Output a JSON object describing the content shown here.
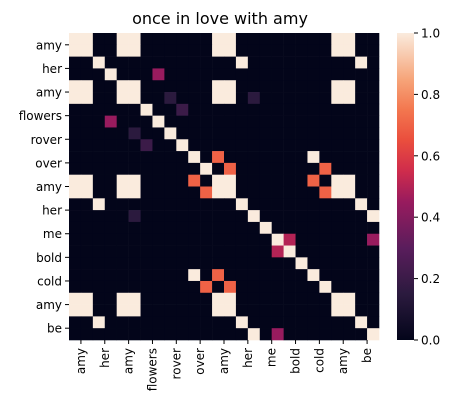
{
  "chart_data": {
    "type": "heatmap",
    "title": "once in love with amy",
    "xlabel": "",
    "ylabel": "",
    "x_categories": [
      "amy",
      "her",
      "amy",
      "flowers",
      "rover",
      "over",
      "amy",
      "her",
      "me",
      "bold",
      "cold",
      "amy",
      "be"
    ],
    "y_categories": [
      "amy",
      "her",
      "amy",
      "flowers",
      "rover",
      "over",
      "amy",
      "her",
      "me",
      "bold",
      "cold",
      "amy",
      "be"
    ],
    "units_per_word": 2,
    "values": [
      [
        1,
        1,
        0,
        0,
        1,
        1,
        0,
        0,
        0,
        0,
        0,
        0,
        1,
        1,
        0,
        0,
        0,
        0,
        0,
        0,
        0,
        0,
        1,
        1,
        0,
        0
      ],
      [
        1,
        1,
        0,
        0,
        1,
        1,
        0,
        0,
        0,
        0,
        0,
        0,
        1,
        1,
        0,
        0,
        0,
        0,
        0,
        0,
        0,
        0,
        1,
        1,
        0,
        0
      ],
      [
        0,
        0,
        1,
        0,
        0,
        0,
        0,
        0,
        0,
        0,
        0,
        0,
        0,
        0,
        1,
        0,
        0,
        0,
        0,
        0,
        0,
        0,
        0,
        0,
        1,
        0
      ],
      [
        0,
        0,
        0,
        1,
        0,
        0,
        0,
        0,
        0,
        0,
        0,
        0,
        0,
        0,
        0,
        0,
        0,
        0,
        0,
        0,
        0,
        0,
        0,
        0,
        0,
        0
      ],
      [
        1,
        1,
        0,
        0,
        1,
        1,
        0,
        0,
        0,
        0,
        0,
        0,
        1,
        1,
        0,
        0,
        0,
        0,
        0,
        0,
        0,
        0,
        1,
        1,
        0,
        0
      ],
      [
        1,
        1,
        0,
        0,
        1,
        1,
        0,
        0,
        0,
        0,
        0,
        0,
        1,
        1,
        0,
        0,
        0,
        0,
        0,
        0,
        0,
        0,
        1,
        1,
        0,
        0
      ],
      [
        0,
        0,
        0,
        0,
        0,
        0,
        1,
        0,
        0,
        0,
        0,
        0,
        0,
        0,
        0,
        0,
        0,
        0,
        0,
        0,
        0,
        0,
        0,
        0,
        0,
        0
      ],
      [
        0,
        0,
        0,
        0,
        0,
        0,
        0,
        1,
        0,
        0,
        0,
        0,
        0,
        0,
        0,
        0,
        0,
        0,
        0,
        0,
        0,
        0,
        0,
        0,
        0,
        0
      ],
      [
        0,
        0,
        0,
        0,
        0,
        0,
        0,
        0,
        1,
        0,
        0,
        0,
        0,
        0,
        0,
        0,
        0,
        0,
        0,
        0,
        0,
        0,
        0,
        0,
        0,
        0
      ],
      [
        0,
        0,
        0,
        0,
        0,
        0,
        0,
        0,
        0,
        1,
        0,
        0,
        0,
        0,
        0,
        0,
        0,
        0,
        0,
        0,
        0,
        0,
        0,
        0,
        0,
        0
      ],
      [
        0,
        0,
        0,
        0,
        0,
        0,
        0,
        0,
        0,
        0,
        1,
        0,
        0,
        0,
        0,
        0,
        0,
        0,
        0,
        0,
        1,
        0,
        0,
        0,
        0,
        0
      ],
      [
        0,
        0,
        0,
        0,
        0,
        0,
        0,
        0,
        0,
        0,
        0,
        1,
        0,
        0,
        0,
        0,
        0,
        0,
        0,
        0,
        0,
        1,
        0,
        0,
        0,
        0
      ],
      [
        1,
        1,
        0,
        0,
        1,
        1,
        0,
        0,
        0,
        0,
        0,
        0,
        1,
        1,
        0,
        0,
        0,
        0,
        0,
        0,
        0,
        0,
        1,
        1,
        0,
        0
      ],
      [
        1,
        1,
        0,
        0,
        1,
        1,
        0,
        0,
        0,
        0,
        0,
        0,
        1,
        1,
        0,
        0,
        0,
        0,
        0,
        0,
        0,
        0,
        1,
        1,
        0,
        0
      ],
      [
        0,
        0,
        1,
        0,
        0,
        0,
        0,
        0,
        0,
        0,
        0,
        0,
        0,
        0,
        1,
        0,
        0,
        0,
        0,
        0,
        0,
        0,
        0,
        0,
        1,
        0
      ],
      [
        0,
        0,
        0,
        0,
        0,
        0,
        0,
        0,
        0,
        0,
        0,
        0,
        0,
        0,
        0,
        1,
        0,
        0,
        0,
        0,
        0,
        0,
        0,
        0,
        0,
        1
      ],
      [
        0,
        0,
        0,
        0,
        0,
        0,
        0,
        0,
        0,
        0,
        0,
        0,
        0,
        0,
        0,
        0,
        1,
        0,
        0,
        0,
        0,
        0,
        0,
        0,
        0,
        0
      ],
      [
        0,
        0,
        0,
        0,
        0,
        0,
        0,
        0,
        0,
        0,
        0,
        0,
        0,
        0,
        0,
        0,
        0,
        1,
        0,
        0,
        0,
        0,
        0,
        0,
        0,
        0
      ],
      [
        0,
        0,
        0,
        0,
        0,
        0,
        0,
        0,
        0,
        0,
        0,
        0,
        0,
        0,
        0,
        0,
        0,
        0,
        1,
        0,
        0,
        0,
        0,
        0,
        0,
        0
      ],
      [
        0,
        0,
        0,
        0,
        0,
        0,
        0,
        0,
        0,
        0,
        0,
        0,
        0,
        0,
        0,
        0,
        0,
        0,
        0,
        1,
        0,
        0,
        0,
        0,
        0,
        0
      ],
      [
        0,
        0,
        0,
        0,
        0,
        0,
        0,
        0,
        0,
        0,
        1,
        0,
        0,
        0,
        0,
        0,
        0,
        0,
        0,
        0,
        1,
        0,
        0,
        0,
        0,
        0
      ],
      [
        0,
        0,
        0,
        0,
        0,
        0,
        0,
        0,
        0,
        0,
        0,
        1,
        0,
        0,
        0,
        0,
        0,
        0,
        0,
        0,
        0,
        1,
        0,
        0,
        0,
        0
      ],
      [
        1,
        1,
        0,
        0,
        1,
        1,
        0,
        0,
        0,
        0,
        0,
        0,
        1,
        1,
        0,
        0,
        0,
        0,
        0,
        0,
        0,
        0,
        1,
        1,
        0,
        0
      ],
      [
        1,
        1,
        0,
        0,
        1,
        1,
        0,
        0,
        0,
        0,
        0,
        0,
        1,
        1,
        0,
        0,
        0,
        0,
        0,
        0,
        0,
        0,
        1,
        1,
        0,
        0
      ],
      [
        0,
        0,
        1,
        0,
        0,
        0,
        0,
        0,
        0,
        0,
        0,
        0,
        0,
        0,
        1,
        0,
        0,
        0,
        0,
        0,
        0,
        0,
        0,
        0,
        1,
        0
      ],
      [
        0,
        0,
        0,
        0,
        0,
        0,
        0,
        0,
        0,
        0,
        0,
        0,
        0,
        0,
        0,
        1,
        0,
        0,
        0,
        0,
        0,
        0,
        0,
        0,
        0,
        1
      ]
    ],
    "highlights": [
      {
        "row": 3,
        "col": 7,
        "value": 0.45
      },
      {
        "row": 7,
        "col": 3,
        "value": 0.45
      },
      {
        "row": 5,
        "col": 8,
        "value": 0.15
      },
      {
        "row": 8,
        "col": 5,
        "value": 0.15
      },
      {
        "row": 5,
        "col": 15,
        "value": 0.15
      },
      {
        "row": 15,
        "col": 5,
        "value": 0.15
      },
      {
        "row": 6,
        "col": 9,
        "value": 0.2
      },
      {
        "row": 9,
        "col": 6,
        "value": 0.2
      },
      {
        "row": 10,
        "col": 12,
        "value": 0.7
      },
      {
        "row": 12,
        "col": 10,
        "value": 0.7
      },
      {
        "row": 11,
        "col": 13,
        "value": 0.7
      },
      {
        "row": 13,
        "col": 11,
        "value": 0.7
      },
      {
        "row": 10,
        "col": 20,
        "value": 0.0
      },
      {
        "row": 17,
        "col": 18,
        "value": 0.5
      },
      {
        "row": 18,
        "col": 17,
        "value": 0.5
      },
      {
        "row": 17,
        "col": 25,
        "value": 0.45
      },
      {
        "row": 25,
        "col": 17,
        "value": 0.45
      },
      {
        "row": 20,
        "col": 12,
        "value": 0.7
      },
      {
        "row": 12,
        "col": 20,
        "value": 0.7
      },
      {
        "row": 21,
        "col": 13,
        "value": 0.7
      },
      {
        "row": 13,
        "col": 21,
        "value": 0.7
      },
      {
        "row": 21,
        "col": 11,
        "value": 0.7
      },
      {
        "row": 11,
        "col": 21,
        "value": 0.7
      },
      {
        "row": 10,
        "col": 22,
        "value": 0.0
      }
    ],
    "zlim": [
      0,
      1
    ],
    "colorbar_ticks": [
      "0.0",
      "0.2",
      "0.4",
      "0.6",
      "0.8",
      "1.0"
    ],
    "colormap": "rocket",
    "grid": false
  }
}
